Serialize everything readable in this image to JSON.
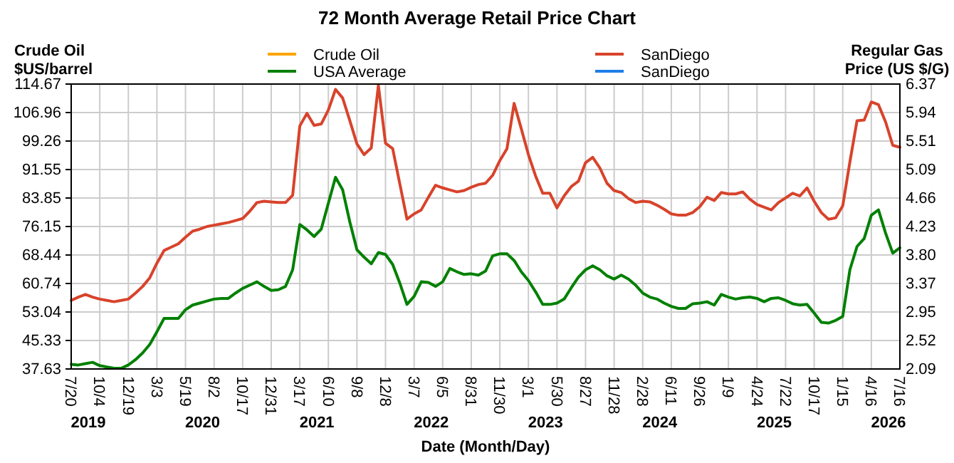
{
  "chart_data": {
    "type": "line",
    "title": "72 Month Average Retail Price Chart",
    "xlabel": "Date (Month/Day)",
    "ylabel": "Crude Oil\n$US/barrel",
    "y2label": "Regular Gas\nPrice (US $/G)",
    "categories": [
      "7/20",
      null,
      null,
      null,
      "10/4",
      null,
      null,
      null,
      "12/19",
      null,
      null,
      null,
      "3/3",
      null,
      null,
      null,
      "5/19",
      null,
      null,
      null,
      "8/2",
      null,
      null,
      null,
      "10/17",
      null,
      null,
      null,
      "12/31",
      null,
      null,
      null,
      "3/17",
      null,
      null,
      null,
      "6/10",
      null,
      null,
      null,
      "9/8",
      null,
      null,
      null,
      "12/8",
      null,
      null,
      null,
      "3/7",
      null,
      null,
      null,
      "6/5",
      null,
      null,
      null,
      "8/31",
      null,
      null,
      null,
      "11/30",
      null,
      null,
      null,
      "3/1",
      null,
      null,
      null,
      "5/30",
      null,
      null,
      null,
      "8/27",
      null,
      null,
      null,
      "11/28",
      null,
      null,
      null,
      "2/28",
      null,
      null,
      null,
      "6/11",
      null,
      null,
      null,
      "9/26",
      null,
      null,
      null,
      "1/9",
      null,
      null,
      null,
      "4/24",
      null,
      null,
      null,
      "7/22",
      null,
      null,
      null,
      "10/17",
      null,
      null,
      null,
      "1/15",
      null,
      null,
      null,
      "4/16",
      null,
      null,
      null,
      "7/16"
    ],
    "ylim": [
      37.63,
      114.67
    ],
    "yticks": [
      37.63,
      45.33,
      53.04,
      60.74,
      68.44,
      76.15,
      83.85,
      91.55,
      99.26,
      106.96,
      114.67
    ],
    "y2lim": [
      2.09,
      6.37
    ],
    "y2ticks": [
      2.09,
      2.52,
      2.95,
      3.37,
      {
        "value": 3.8,
        "label": "3.80"
      },
      4.23,
      4.66,
      5.09,
      5.51,
      5.94,
      6.37
    ],
    "grid": true,
    "legend": "top",
    "annotations": [
      "2019",
      "2020",
      "2021",
      "2022",
      "2023",
      "2024",
      "2025",
      "2026"
    ],
    "series": [
      {
        "name": "Crude Oil",
        "color": "#ffa500",
        "values": [
          null,
          null,
          null,
          null,
          null,
          null,
          null,
          null,
          null,
          null,
          null,
          null,
          null,
          null,
          null,
          null,
          null,
          null,
          null,
          null,
          null,
          null,
          null,
          null,
          null,
          null,
          null,
          null,
          null,
          null,
          null,
          null,
          null,
          null,
          null,
          null,
          null,
          null,
          null,
          null,
          null,
          null,
          null,
          null,
          null,
          null,
          null,
          null,
          null,
          null,
          null,
          null,
          null,
          null,
          null,
          null,
          null,
          null,
          null,
          null,
          null,
          null,
          null,
          null,
          null,
          null,
          null,
          null,
          null,
          null,
          null,
          null,
          null,
          null,
          null,
          null,
          null,
          null,
          null,
          null,
          null,
          null,
          null,
          null,
          null,
          null,
          null,
          null,
          null,
          null,
          null,
          null,
          null,
          null,
          null,
          null,
          null,
          null,
          null,
          null,
          null,
          null,
          null,
          null,
          null,
          null,
          null,
          null,
          null,
          null,
          null,
          null,
          null,
          null,
          null,
          null,
          null
        ]
      },
      {
        "name": "USA Average",
        "color": "#008000",
        "axis": "y2",
        "values": [
          2.16,
          2.15,
          2.17,
          2.19,
          2.14,
          2.12,
          2.1,
          2.1,
          2.15,
          2.23,
          2.33,
          2.46,
          2.65,
          2.85,
          2.85,
          2.85,
          2.98,
          3.05,
          3.08,
          3.11,
          3.14,
          3.15,
          3.15,
          3.23,
          3.3,
          3.35,
          3.4,
          3.33,
          3.27,
          3.28,
          3.33,
          3.58,
          4.26,
          4.18,
          4.08,
          4.19,
          4.58,
          4.97,
          4.78,
          4.3,
          3.88,
          3.77,
          3.67,
          3.84,
          3.81,
          3.66,
          3.38,
          3.06,
          3.18,
          3.4,
          3.39,
          3.33,
          3.4,
          3.6,
          3.55,
          3.51,
          3.52,
          3.5,
          3.56,
          3.79,
          3.82,
          3.82,
          3.72,
          3.55,
          3.42,
          3.25,
          3.06,
          3.06,
          3.08,
          3.14,
          3.31,
          3.47,
          3.58,
          3.64,
          3.58,
          3.49,
          3.44,
          3.5,
          3.44,
          3.35,
          3.23,
          3.17,
          3.14,
          3.08,
          3.03,
          3.0,
          3.0,
          3.07,
          3.08,
          3.1,
          3.05,
          3.21,
          3.17,
          3.14,
          3.16,
          3.17,
          3.15,
          3.1,
          3.15,
          3.16,
          3.12,
          3.07,
          3.05,
          3.06,
          2.93,
          2.79,
          2.78,
          2.82,
          2.88,
          3.58,
          3.93,
          4.05,
          4.4,
          4.48,
          4.13,
          3.83,
          3.91
        ]
      },
      {
        "name": "SanDiego",
        "color": "#d8432b",
        "axis": "y2",
        "values": [
          3.12,
          3.17,
          3.21,
          3.17,
          3.14,
          3.12,
          3.1,
          3.12,
          3.14,
          3.23,
          3.33,
          3.46,
          3.68,
          3.87,
          3.92,
          3.97,
          4.07,
          4.16,
          4.19,
          4.23,
          4.25,
          4.27,
          4.29,
          4.32,
          4.35,
          4.46,
          4.59,
          4.61,
          4.6,
          4.59,
          4.59,
          4.7,
          5.74,
          5.93,
          5.75,
          5.77,
          5.98,
          6.29,
          6.16,
          5.82,
          5.47,
          5.31,
          5.41,
          6.35,
          5.48,
          5.4,
          4.87,
          4.34,
          4.42,
          4.48,
          4.67,
          4.85,
          4.81,
          4.78,
          4.75,
          4.77,
          4.82,
          4.86,
          4.88,
          5.0,
          5.22,
          5.4,
          6.08,
          5.7,
          5.31,
          4.99,
          4.73,
          4.73,
          4.51,
          4.69,
          4.83,
          4.91,
          5.19,
          5.27,
          5.11,
          4.88,
          4.77,
          4.74,
          4.65,
          4.59,
          4.61,
          4.6,
          4.55,
          4.49,
          4.42,
          4.4,
          4.4,
          4.44,
          4.53,
          4.67,
          4.62,
          4.74,
          4.72,
          4.72,
          4.75,
          4.64,
          4.56,
          4.52,
          4.48,
          4.59,
          4.66,
          4.73,
          4.69,
          4.81,
          4.61,
          4.44,
          4.34,
          4.36,
          4.54,
          5.2,
          5.82,
          5.83,
          6.1,
          6.06,
          5.8,
          5.45,
          5.42
        ]
      },
      {
        "name": "SanDiego",
        "color": "#1e7ee8",
        "values": [
          null,
          null,
          null,
          null,
          null,
          null,
          null,
          null,
          null,
          null,
          null,
          null,
          null,
          null,
          null,
          null,
          null,
          null,
          null,
          null,
          null,
          null,
          null,
          null,
          null,
          null,
          null,
          null,
          null,
          null,
          null,
          null,
          null,
          null,
          null,
          null,
          null,
          null,
          null,
          null,
          null,
          null,
          null,
          null,
          null,
          null,
          null,
          null,
          null,
          null,
          null,
          null,
          null,
          null,
          null,
          null,
          null,
          null,
          null,
          null,
          null,
          null,
          null,
          null,
          null,
          null,
          null,
          null,
          null,
          null,
          null,
          null,
          null,
          null,
          null,
          null,
          null,
          null,
          null,
          null,
          null,
          null,
          null,
          null,
          null,
          null,
          null,
          null,
          null,
          null,
          null,
          null,
          null,
          null,
          null,
          null,
          null,
          null,
          null,
          null,
          null,
          null,
          null,
          null,
          null,
          null,
          null,
          null,
          null,
          null,
          null,
          null,
          null,
          null,
          null,
          null,
          null
        ]
      }
    ]
  }
}
